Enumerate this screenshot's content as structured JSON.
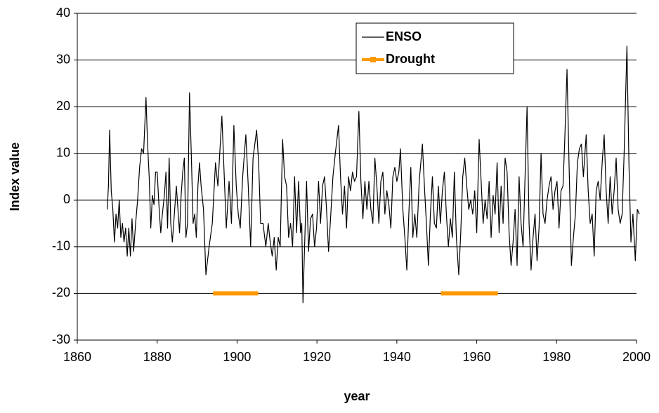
{
  "chart_data": {
    "type": "line",
    "xlabel": "year",
    "ylabel": "Index value",
    "xlim": [
      1860,
      2000
    ],
    "xticks": [
      1860,
      1880,
      1900,
      1920,
      1940,
      1960,
      1980,
      2000
    ],
    "ylim": [
      -30,
      40
    ],
    "yticks": [
      -30,
      -20,
      -10,
      0,
      10,
      20,
      30,
      40
    ],
    "grid": true,
    "legend": "top-right",
    "series": [
      {
        "name": "ENSO",
        "color": "#000000",
        "x": [
          1867.5,
          1867.8,
          1868.1,
          1868.5,
          1868.9,
          1869.3,
          1869.7,
          1870.1,
          1870.5,
          1870.9,
          1871.3,
          1871.7,
          1872.1,
          1872.5,
          1872.9,
          1873.3,
          1873.7,
          1874.1,
          1874.6,
          1875.1,
          1875.6,
          1876.1,
          1876.6,
          1877.2,
          1877.6,
          1878.0,
          1878.4,
          1878.8,
          1879.2,
          1879.6,
          1880.0,
          1880.5,
          1880.9,
          1881.3,
          1881.8,
          1882.2,
          1882.6,
          1883.0,
          1883.4,
          1883.8,
          1884.3,
          1884.8,
          1885.2,
          1885.6,
          1886.0,
          1886.4,
          1886.8,
          1887.2,
          1887.6,
          1888.1,
          1888.6,
          1889.0,
          1889.4,
          1889.8,
          1890.2,
          1890.6,
          1891.0,
          1891.6,
          1892.2,
          1893.0,
          1893.8,
          1894.6,
          1895.2,
          1896.2,
          1896.8,
          1897.3,
          1898.0,
          1898.6,
          1899.2,
          1899.8,
          1900.3,
          1900.8,
          1901.4,
          1902.2,
          1902.8,
          1903.4,
          1904.0,
          1904.9,
          1905.4,
          1905.9,
          1906.5,
          1907.2,
          1907.8,
          1908.3,
          1908.8,
          1909.3,
          1909.8,
          1910.3,
          1910.8,
          1911.4,
          1911.9,
          1912.4,
          1912.9,
          1913.4,
          1913.9,
          1914.4,
          1914.9,
          1915.4,
          1915.9,
          1916.2,
          1916.5,
          1916.9,
          1917.4,
          1917.9,
          1918.4,
          1918.9,
          1919.4,
          1919.9,
          1920.4,
          1920.9,
          1921.4,
          1921.9,
          1922.4,
          1922.9,
          1923.4,
          1924.0,
          1924.6,
          1925.4,
          1925.9,
          1926.4,
          1926.9,
          1927.4,
          1927.9,
          1928.4,
          1928.9,
          1929.4,
          1929.9,
          1930.5,
          1931.0,
          1931.5,
          1932.0,
          1932.5,
          1933.0,
          1933.5,
          1934.0,
          1934.5,
          1935.0,
          1935.5,
          1936.0,
          1936.5,
          1937.0,
          1937.5,
          1938.0,
          1938.5,
          1939.0,
          1939.5,
          1940.0,
          1940.5,
          1940.9,
          1941.5,
          1942.0,
          1942.5,
          1943.0,
          1943.5,
          1944.0,
          1944.5,
          1945.0,
          1945.6,
          1946.4,
          1946.9,
          1947.4,
          1947.9,
          1948.4,
          1948.9,
          1949.4,
          1949.9,
          1950.4,
          1950.9,
          1951.4,
          1951.9,
          1952.4,
          1952.9,
          1953.4,
          1953.9,
          1954.4,
          1954.9,
          1955.5,
          1956.0,
          1956.5,
          1957.0,
          1957.5,
          1958.0,
          1958.5,
          1959.0,
          1959.5,
          1960.0,
          1960.6,
          1961.1,
          1961.6,
          1962.1,
          1962.6,
          1963.1,
          1963.6,
          1964.1,
          1964.6,
          1965.1,
          1965.6,
          1966.1,
          1966.6,
          1967.1,
          1967.6,
          1968.1,
          1968.6,
          1969.1,
          1969.6,
          1970.1,
          1970.6,
          1971.1,
          1971.6,
          1972.1,
          1972.6,
          1973.1,
          1973.6,
          1974.1,
          1974.6,
          1975.1,
          1975.6,
          1976.1,
          1976.6,
          1977.1,
          1977.6,
          1978.1,
          1978.6,
          1979.1,
          1979.6,
          1980.1,
          1980.6,
          1981.1,
          1981.6,
          1982.0,
          1982.6,
          1983.1,
          1983.7,
          1984.2,
          1984.7,
          1985.2,
          1985.7,
          1986.2,
          1986.7,
          1987.4,
          1987.9,
          1988.4,
          1988.9,
          1989.4,
          1989.9,
          1990.4,
          1990.9,
          1991.4,
          1991.9,
          1992.4,
          1992.9,
          1993.4,
          1993.9,
          1994.4,
          1994.9,
          1995.4,
          1995.9,
          1996.4,
          1996.9,
          1997.6,
          1998.1,
          1998.6,
          1999.1,
          1999.7,
          2000.2,
          2000.7
        ],
        "values": [
          -2,
          3,
          15,
          2,
          -2,
          -9,
          -3,
          -6,
          0,
          -8,
          -5,
          -9,
          -6,
          -12,
          -6,
          -12,
          -4,
          -11,
          -5,
          0,
          7,
          11,
          10,
          22,
          12,
          5,
          -6,
          1,
          -1,
          6,
          6,
          -2,
          -7,
          -3,
          1,
          6,
          -6,
          9,
          -5,
          -9,
          -3,
          3,
          -2,
          -7,
          1,
          6,
          9,
          -8,
          -5,
          23,
          8,
          -5,
          -3,
          -8,
          3,
          8,
          3,
          -2,
          -16,
          -10,
          -5,
          8,
          3,
          18,
          5,
          -6,
          4,
          -5,
          16,
          3,
          -3,
          -6,
          5,
          14,
          3,
          -10,
          9,
          15,
          8,
          -5,
          -5,
          -10,
          -5,
          -9,
          -12,
          -8,
          -15,
          -8,
          -10,
          13,
          5,
          3,
          -8,
          -5,
          -10,
          5,
          -7,
          4,
          -7,
          -5,
          -22,
          -10,
          4,
          -11,
          -4,
          -3,
          -10,
          -6,
          4,
          -5,
          3,
          5,
          -2,
          -11,
          -4,
          5,
          10,
          16,
          5,
          -3,
          3,
          -6,
          5,
          2,
          6,
          4,
          5,
          19,
          4,
          -4,
          4,
          -2,
          4,
          -2,
          -5,
          9,
          3,
          -5,
          4,
          6,
          -3,
          2,
          -1,
          -6,
          5,
          7,
          4,
          6,
          11,
          -2,
          -8,
          -15,
          -3,
          7,
          -8,
          -3,
          -8,
          4,
          12,
          3,
          -5,
          -14,
          -3,
          5,
          -5,
          -6,
          3,
          -5,
          2,
          6,
          -3,
          -10,
          -4,
          -8,
          6,
          -8,
          -16,
          -7,
          5,
          9,
          3,
          -2,
          0,
          -3,
          2,
          -7,
          13,
          4,
          -5,
          0,
          -4,
          4,
          -8,
          1,
          -3,
          8,
          -7,
          3,
          -5,
          9,
          6,
          -7,
          -14,
          -9,
          -2,
          -14,
          5,
          -5,
          -10,
          5,
          20,
          -5,
          -15,
          -8,
          -3,
          -13,
          -6,
          10,
          -3,
          -5,
          0,
          3,
          5,
          -2,
          2,
          4,
          -6,
          2,
          3,
          12,
          28,
          8,
          -14,
          -8,
          -3,
          8,
          11,
          12,
          5,
          14,
          2,
          -5,
          -3,
          -12,
          2,
          4,
          0,
          8,
          14,
          2,
          -5,
          5,
          -3,
          2,
          9,
          -2,
          -5,
          -3,
          10,
          33,
          8,
          -9,
          -3,
          -13,
          -2,
          -3
        ]
      },
      {
        "name": "Drought",
        "color": "#ff9900",
        "x": [
          1894,
          1905.3,
          null,
          1951,
          1965.3
        ],
        "values": [
          -20,
          -20,
          null,
          -20,
          -20
        ]
      }
    ]
  }
}
